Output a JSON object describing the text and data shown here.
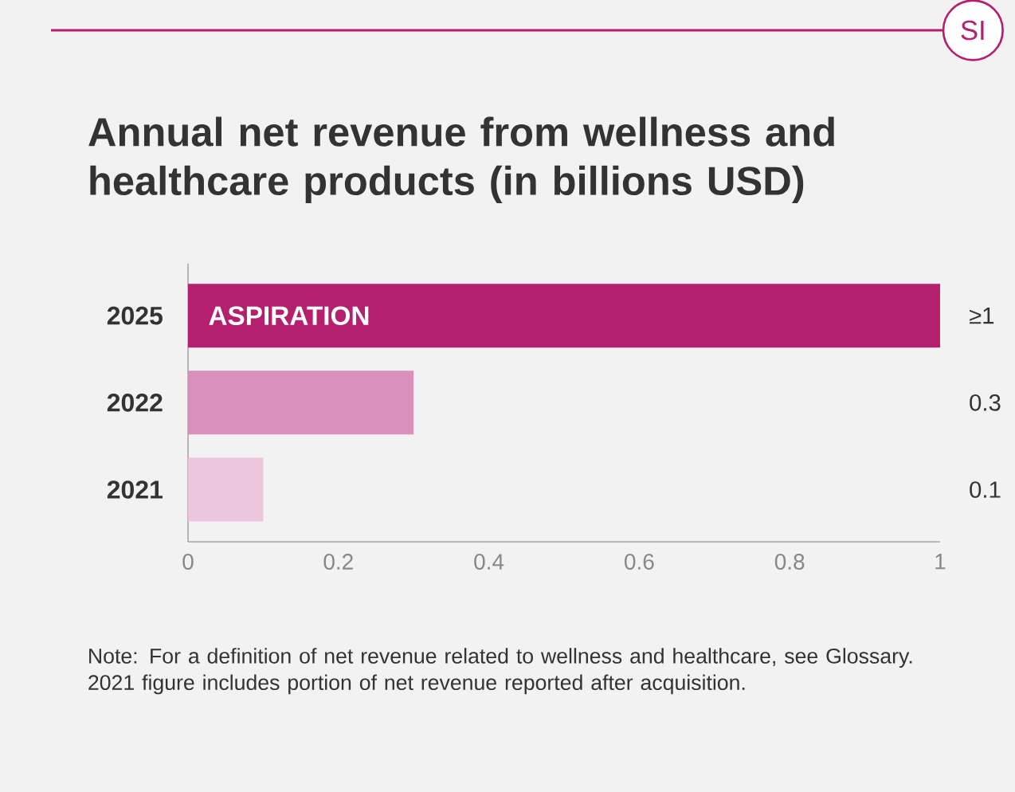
{
  "chart_data": {
    "type": "bar",
    "orientation": "horizontal",
    "title": "Annual net revenue from wellness and healthcare products (in billions USD)",
    "categories": [
      "2025",
      "2022",
      "2021"
    ],
    "values": [
      1,
      0.3,
      0.1
    ],
    "colors": [
      "#b5206e",
      "#d991bb",
      "#ecc6dd"
    ],
    "value_labels": [
      "≥1",
      "0.3",
      "0.1"
    ],
    "xlim": [
      0,
      1
    ],
    "xticks": [
      0,
      0.2,
      0.4,
      0.6,
      0.8,
      1
    ],
    "grid": false,
    "annotations": [
      "ASPIRATION",
      "Note: For a definition of net revenue related to wellness and healthcare, see Glossary. 2021 figure includes portion of net revenue reported after acquisition.",
      "SI"
    ]
  }
}
